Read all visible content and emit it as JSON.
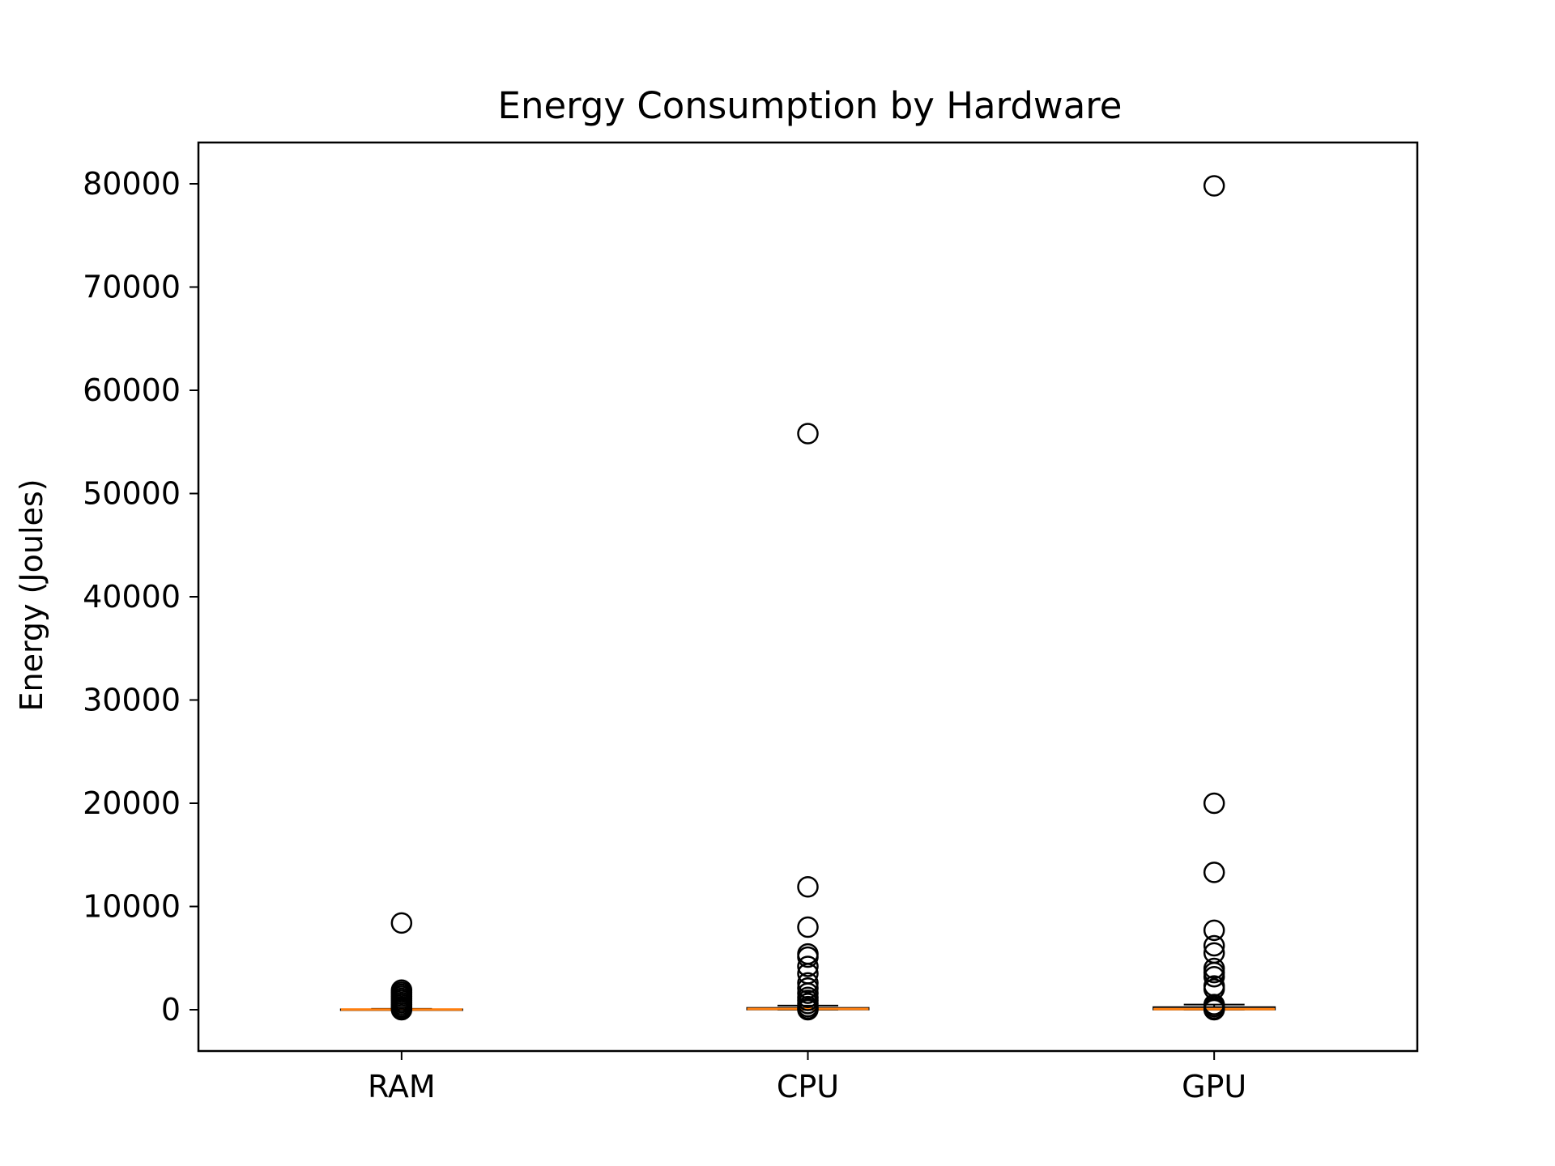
{
  "chart_data": {
    "type": "box",
    "title": "Energy Consumption by Hardware",
    "xlabel": "",
    "ylabel": "Energy (Joules)",
    "categories": [
      "RAM",
      "CPU",
      "GPU"
    ],
    "ylim": [
      -4000,
      84000
    ],
    "yticks": [
      0,
      10000,
      20000,
      30000,
      40000,
      50000,
      60000,
      70000,
      80000
    ],
    "ytick_labels": [
      "0",
      "10000",
      "20000",
      "30000",
      "40000",
      "50000",
      "60000",
      "70000",
      "80000"
    ],
    "grid": false,
    "boxes": [
      {
        "category": "RAM",
        "whisker_low": 0,
        "q1": 5,
        "median": 15,
        "q3": 40,
        "whisker_high": 90,
        "outliers": [
          8400,
          1900,
          1700,
          1500,
          1300,
          1100,
          900,
          700,
          500,
          300,
          150,
          0
        ]
      },
      {
        "category": "CPU",
        "whisker_low": 0,
        "q1": 20,
        "median": 80,
        "q3": 180,
        "whisker_high": 400,
        "outliers": [
          55800,
          11900,
          8000,
          5400,
          5100,
          4200,
          3500,
          2600,
          2100,
          1600,
          1200,
          900,
          600,
          300,
          100,
          0
        ]
      },
      {
        "category": "GPU",
        "whisker_low": 0,
        "q1": 20,
        "median": 60,
        "q3": 250,
        "whisker_high": 500,
        "outliers": [
          79800,
          20000,
          13300,
          7700,
          6200,
          5500,
          4000,
          3600,
          3200,
          2300,
          2000,
          500,
          300,
          100,
          0
        ]
      }
    ],
    "colors": {
      "median": "#ff7f0e",
      "box": "#000000",
      "outlier": "#000000"
    }
  }
}
